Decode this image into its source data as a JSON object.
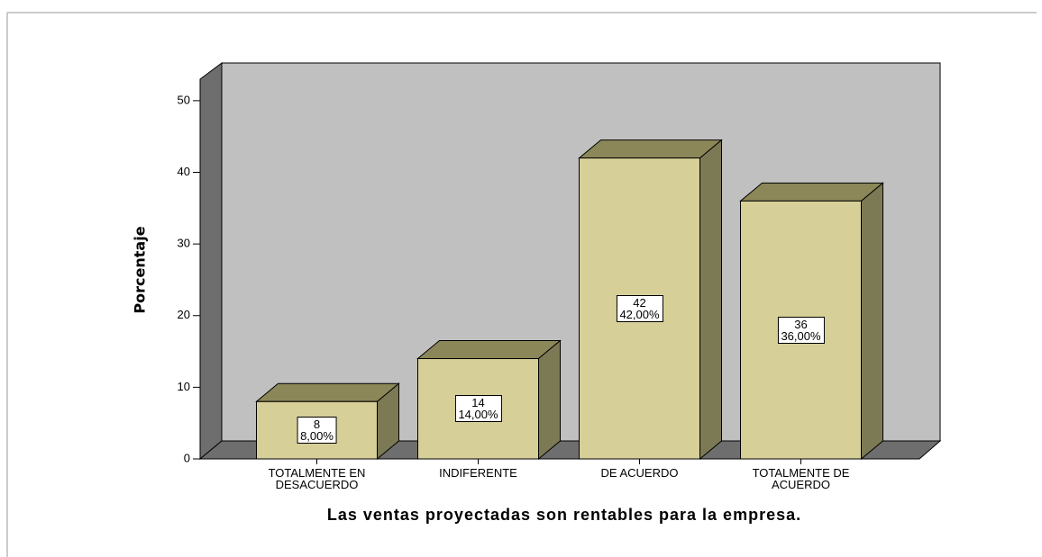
{
  "chart_data": {
    "type": "bar3d",
    "x_label": "Las ventas proyectadas son rentables para la empresa.",
    "y_label": "Porcentaje",
    "categories": [
      "TOTALMENTE EN\nDESACUERDO",
      "INDIFERENTE",
      "DE ACUERDO",
      "TOTALMENTE DE\nACUERDO"
    ],
    "values": [
      8,
      14,
      42,
      36
    ],
    "value_labels": [
      "8\n8,00%",
      "14\n14,00%",
      "42\n42,00%",
      "36\n36,00%"
    ],
    "color": "#d6cf98",
    "ylim": [
      0,
      53
    ],
    "yticks": [
      0,
      10,
      20,
      30,
      40,
      50
    ]
  }
}
